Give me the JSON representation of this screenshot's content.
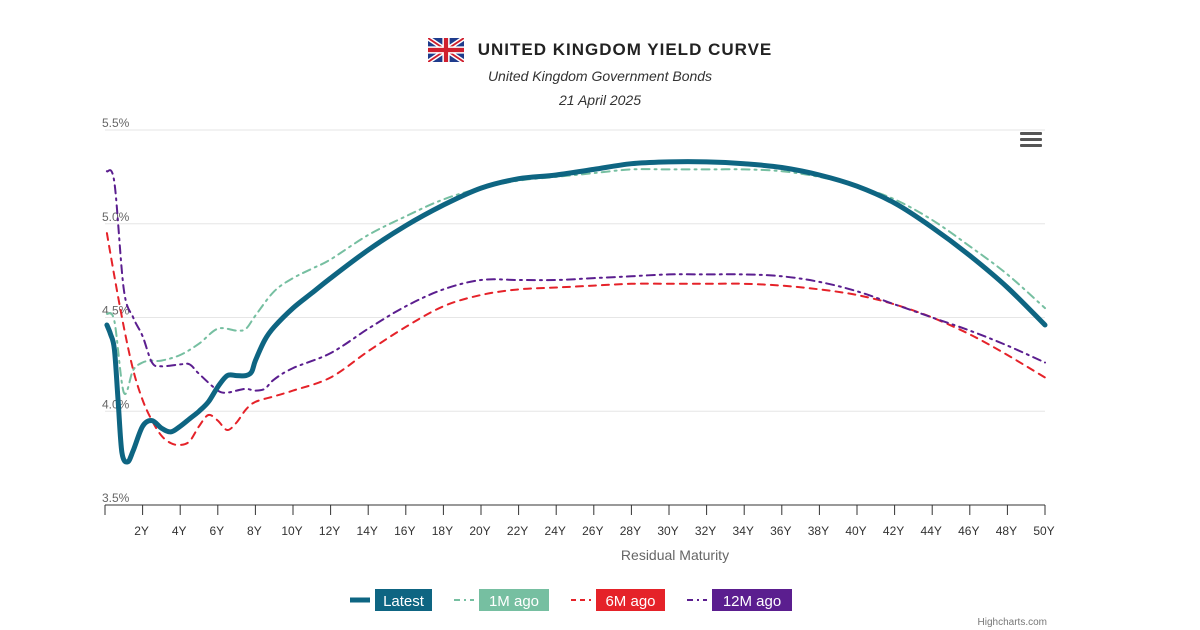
{
  "header": {
    "title": "UNITED KINGDOM YIELD CURVE",
    "subtitle": "United Kingdom Government Bonds",
    "date": "21 April 2025"
  },
  "credits": "Highcharts.com",
  "icons": {
    "flag": "uk-flag-icon",
    "menu": "hamburger-menu-icon"
  },
  "chart_data": {
    "type": "line",
    "title": "UNITED KINGDOM YIELD CURVE",
    "subtitle": "United Kingdom Government Bonds",
    "xlabel": "Residual Maturity",
    "ylabel": "",
    "xlim": [
      0,
      50
    ],
    "ylim": [
      3.5,
      5.5
    ],
    "y_ticks": [
      3.5,
      4.0,
      4.5,
      5.0,
      5.5
    ],
    "y_tick_labels": [
      "3.5%",
      "4.0%",
      "4.5%",
      "5.0%",
      "5.5%"
    ],
    "x_ticks": [
      2,
      4,
      6,
      8,
      10,
      12,
      14,
      16,
      18,
      20,
      22,
      24,
      26,
      28,
      30,
      32,
      34,
      36,
      38,
      40,
      42,
      44,
      46,
      48,
      50
    ],
    "x_tick_labels": [
      "2Y",
      "4Y",
      "6Y",
      "8Y",
      "10Y",
      "12Y",
      "14Y",
      "16Y",
      "18Y",
      "20Y",
      "22Y",
      "24Y",
      "26Y",
      "28Y",
      "30Y",
      "32Y",
      "34Y",
      "36Y",
      "38Y",
      "40Y",
      "42Y",
      "44Y",
      "46Y",
      "48Y",
      "50Y"
    ],
    "grid": true,
    "legend_position": "bottom-center",
    "series": [
      {
        "name": "Latest",
        "color": "#0e6582",
        "dash": "solid",
        "points": [
          [
            0.1,
            4.46
          ],
          [
            0.3,
            4.41
          ],
          [
            0.5,
            4.33
          ],
          [
            0.7,
            4.05
          ],
          [
            0.9,
            3.78
          ],
          [
            1.2,
            3.73
          ],
          [
            1.5,
            3.79
          ],
          [
            2.0,
            3.92
          ],
          [
            2.5,
            3.95
          ],
          [
            3.0,
            3.91
          ],
          [
            3.5,
            3.89
          ],
          [
            4.0,
            3.92
          ],
          [
            4.5,
            3.96
          ],
          [
            5.0,
            4.0
          ],
          [
            5.5,
            4.05
          ],
          [
            6.0,
            4.13
          ],
          [
            6.5,
            4.19
          ],
          [
            7.0,
            4.19
          ],
          [
            7.5,
            4.19
          ],
          [
            7.8,
            4.21
          ],
          [
            8.0,
            4.27
          ],
          [
            8.5,
            4.38
          ],
          [
            9,
            4.45
          ],
          [
            10,
            4.55
          ],
          [
            11,
            4.63
          ],
          [
            12,
            4.71
          ],
          [
            14,
            4.86
          ],
          [
            16,
            4.99
          ],
          [
            18,
            5.1
          ],
          [
            20,
            5.19
          ],
          [
            22,
            5.24
          ],
          [
            24,
            5.26
          ],
          [
            26,
            5.29
          ],
          [
            28,
            5.32
          ],
          [
            30,
            5.33
          ],
          [
            32,
            5.33
          ],
          [
            34,
            5.32
          ],
          [
            36,
            5.3
          ],
          [
            38,
            5.26
          ],
          [
            40,
            5.2
          ],
          [
            42,
            5.11
          ],
          [
            44,
            4.98
          ],
          [
            46,
            4.83
          ],
          [
            48,
            4.66
          ],
          [
            50,
            4.46
          ]
        ]
      },
      {
        "name": "1M ago",
        "color": "#76bfa1",
        "dash": "dash-dot",
        "points": [
          [
            0.1,
            4.52
          ],
          [
            0.5,
            4.48
          ],
          [
            1.0,
            4.1
          ],
          [
            1.5,
            4.22
          ],
          [
            2.0,
            4.26
          ],
          [
            2.5,
            4.27
          ],
          [
            3,
            4.27
          ],
          [
            4,
            4.3
          ],
          [
            5,
            4.36
          ],
          [
            6,
            4.44
          ],
          [
            7,
            4.43
          ],
          [
            7.5,
            4.44
          ],
          [
            8,
            4.51
          ],
          [
            9,
            4.64
          ],
          [
            10,
            4.71
          ],
          [
            11,
            4.76
          ],
          [
            12,
            4.81
          ],
          [
            14,
            4.94
          ],
          [
            16,
            5.04
          ],
          [
            18,
            5.13
          ],
          [
            20,
            5.19
          ],
          [
            22,
            5.23
          ],
          [
            24,
            5.25
          ],
          [
            26,
            5.27
          ],
          [
            28,
            5.29
          ],
          [
            30,
            5.29
          ],
          [
            32,
            5.29
          ],
          [
            34,
            5.29
          ],
          [
            36,
            5.28
          ],
          [
            38,
            5.25
          ],
          [
            40,
            5.2
          ],
          [
            42,
            5.13
          ],
          [
            44,
            5.02
          ],
          [
            46,
            4.88
          ],
          [
            48,
            4.73
          ],
          [
            50,
            4.55
          ]
        ]
      },
      {
        "name": "6M ago",
        "color": "#e52229",
        "dash": "dash",
        "points": [
          [
            0.1,
            4.95
          ],
          [
            0.5,
            4.72
          ],
          [
            1.0,
            4.45
          ],
          [
            1.5,
            4.22
          ],
          [
            2.0,
            4.06
          ],
          [
            2.5,
            3.95
          ],
          [
            3,
            3.87
          ],
          [
            3.5,
            3.83
          ],
          [
            4,
            3.82
          ],
          [
            4.5,
            3.84
          ],
          [
            5,
            3.92
          ],
          [
            5.5,
            3.98
          ],
          [
            6,
            3.95
          ],
          [
            6.5,
            3.9
          ],
          [
            7,
            3.94
          ],
          [
            7.5,
            4.01
          ],
          [
            8,
            4.05
          ],
          [
            9,
            4.08
          ],
          [
            10,
            4.11
          ],
          [
            12,
            4.18
          ],
          [
            14,
            4.32
          ],
          [
            16,
            4.45
          ],
          [
            18,
            4.56
          ],
          [
            20,
            4.62
          ],
          [
            22,
            4.65
          ],
          [
            24,
            4.66
          ],
          [
            26,
            4.67
          ],
          [
            28,
            4.68
          ],
          [
            30,
            4.68
          ],
          [
            32,
            4.68
          ],
          [
            34,
            4.68
          ],
          [
            36,
            4.67
          ],
          [
            38,
            4.65
          ],
          [
            40,
            4.62
          ],
          [
            42,
            4.57
          ],
          [
            44,
            4.5
          ],
          [
            46,
            4.41
          ],
          [
            48,
            4.3
          ],
          [
            50,
            4.18
          ]
        ]
      },
      {
        "name": "12M ago",
        "color": "#5b1e8f",
        "dash": "dash-dot",
        "points": [
          [
            0.1,
            5.28
          ],
          [
            0.5,
            5.22
          ],
          [
            1.0,
            4.65
          ],
          [
            1.5,
            4.5
          ],
          [
            2.0,
            4.4
          ],
          [
            2.5,
            4.26
          ],
          [
            3,
            4.24
          ],
          [
            4,
            4.25
          ],
          [
            4.5,
            4.25
          ],
          [
            5,
            4.2
          ],
          [
            6,
            4.11
          ],
          [
            6.5,
            4.1
          ],
          [
            7,
            4.11
          ],
          [
            7.5,
            4.12
          ],
          [
            8,
            4.11
          ],
          [
            8.5,
            4.12
          ],
          [
            9,
            4.17
          ],
          [
            10,
            4.23
          ],
          [
            12,
            4.31
          ],
          [
            14,
            4.44
          ],
          [
            16,
            4.56
          ],
          [
            18,
            4.65
          ],
          [
            20,
            4.7
          ],
          [
            22,
            4.7
          ],
          [
            24,
            4.7
          ],
          [
            26,
            4.71
          ],
          [
            28,
            4.72
          ],
          [
            30,
            4.73
          ],
          [
            32,
            4.73
          ],
          [
            34,
            4.73
          ],
          [
            36,
            4.72
          ],
          [
            38,
            4.69
          ],
          [
            40,
            4.64
          ],
          [
            42,
            4.57
          ],
          [
            44,
            4.5
          ],
          [
            46,
            4.43
          ],
          [
            48,
            4.35
          ],
          [
            50,
            4.26
          ]
        ]
      }
    ]
  }
}
